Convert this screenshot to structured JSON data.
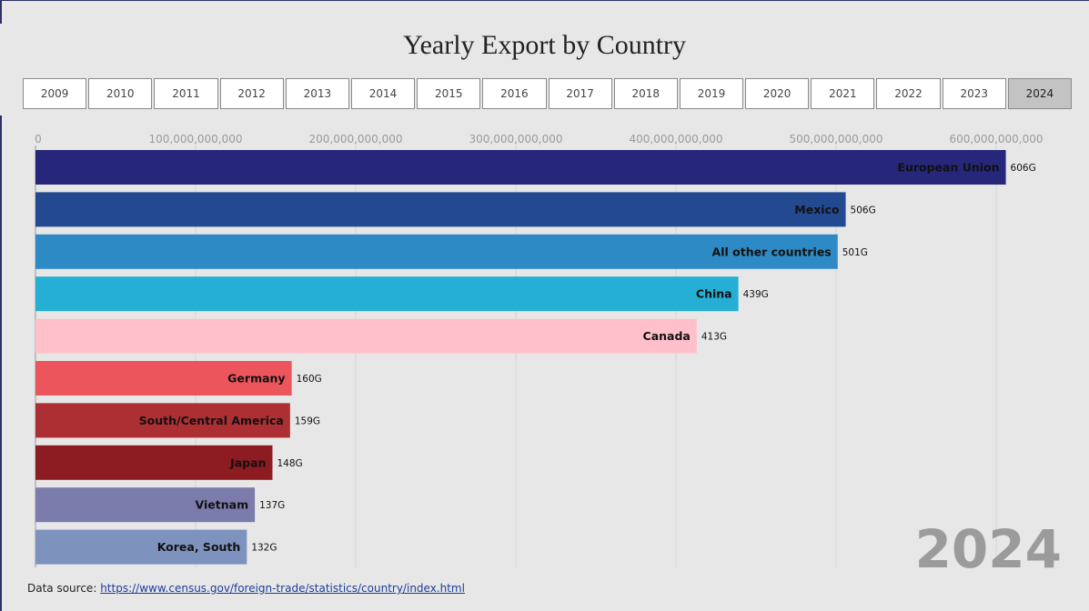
{
  "title": "Yearly Export by Country",
  "years": [
    "2009",
    "2010",
    "2011",
    "2012",
    "2013",
    "2014",
    "2015",
    "2016",
    "2017",
    "2018",
    "2019",
    "2020",
    "2021",
    "2022",
    "2023",
    "2024"
  ],
  "selected_year": "2024",
  "current_year_label": "2024",
  "source": {
    "label": "Data source: ",
    "link_text": "https://www.census.gov/foreign-trade/statistics/country/index.html"
  },
  "chart_data": {
    "type": "bar",
    "orientation": "horizontal",
    "xlim": [
      0,
      630000000000
    ],
    "x_ticks": [
      0,
      100000000000,
      200000000000,
      300000000000,
      400000000000,
      500000000000,
      600000000000
    ],
    "x_tick_labels": [
      "0",
      "100,000,000,000",
      "200,000,000,000",
      "300,000,000,000",
      "400,000,000,000",
      "500,000,000,000",
      "600,000,000,000"
    ],
    "grid": true,
    "categories": [
      "European Union",
      "Mexico",
      "All other countries",
      "China",
      "Canada",
      "Germany",
      "South/Central America",
      "Japan",
      "Vietnam",
      "Korea, South"
    ],
    "values": [
      606000000000,
      506000000000,
      501000000000,
      439000000000,
      413000000000,
      160000000000,
      159000000000,
      148000000000,
      137000000000,
      132000000000
    ],
    "value_labels": [
      "606G",
      "506G",
      "501G",
      "439G",
      "413G",
      "160G",
      "159G",
      "148G",
      "137G",
      "132G"
    ],
    "colors": [
      "#26267a",
      "#234a91",
      "#2e8ac4",
      "#25afd4",
      "#ffc0cb",
      "#ec555b",
      "#ac3033",
      "#8c1c21",
      "#7c7cac",
      "#7e92be"
    ]
  }
}
